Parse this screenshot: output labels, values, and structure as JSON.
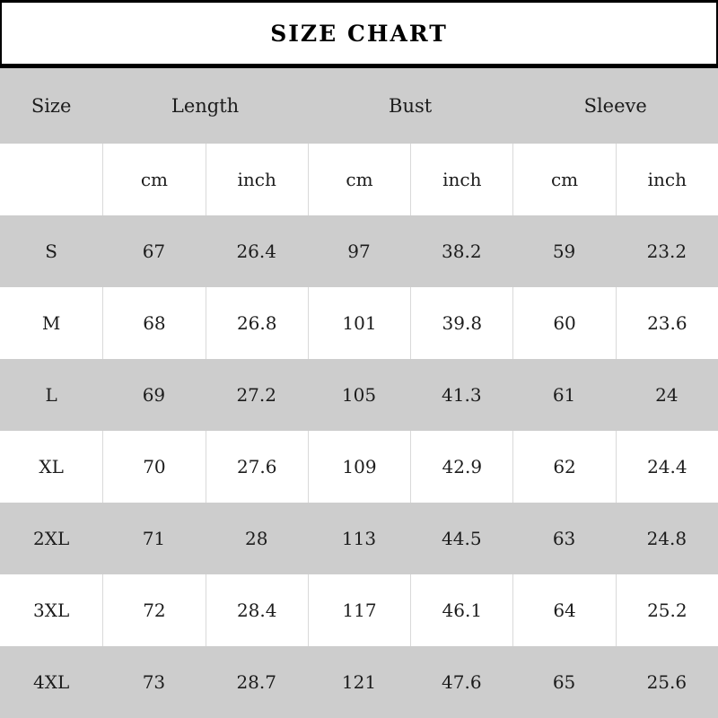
{
  "title": "SIZE CHART",
  "colors": {
    "row_shade": "#cdcdcd",
    "border": "#000000",
    "grid_line": "#d9d9d9",
    "background": "#ffffff",
    "text": "#1c1c1c"
  },
  "chart_data": {
    "type": "table",
    "title": "SIZE CHART",
    "group_headers": [
      {
        "label": "Size",
        "span": 1
      },
      {
        "label": "Length",
        "span": 2
      },
      {
        "label": "Bust",
        "span": 2
      },
      {
        "label": "Sleeve",
        "span": 2
      }
    ],
    "unit_headers": {
      "c0": "",
      "c1": "cm",
      "c2": "inch",
      "c3": "cm",
      "c4": "inch",
      "c5": "cm",
      "c6": "inch"
    },
    "rows": [
      {
        "size": "S",
        "length_cm": "67",
        "length_in": "26.4",
        "bust_cm": "97",
        "bust_in": "38.2",
        "sleeve_cm": "59",
        "sleeve_in": "23.2"
      },
      {
        "size": "M",
        "length_cm": "68",
        "length_in": "26.8",
        "bust_cm": "101",
        "bust_in": "39.8",
        "sleeve_cm": "60",
        "sleeve_in": "23.6"
      },
      {
        "size": "L",
        "length_cm": "69",
        "length_in": "27.2",
        "bust_cm": "105",
        "bust_in": "41.3",
        "sleeve_cm": "61",
        "sleeve_in": "24"
      },
      {
        "size": "XL",
        "length_cm": "70",
        "length_in": "27.6",
        "bust_cm": "109",
        "bust_in": "42.9",
        "sleeve_cm": "62",
        "sleeve_in": "24.4"
      },
      {
        "size": "2XL",
        "length_cm": "71",
        "length_in": "28",
        "bust_cm": "113",
        "bust_in": "44.5",
        "sleeve_cm": "63",
        "sleeve_in": "24.8"
      },
      {
        "size": "3XL",
        "length_cm": "72",
        "length_in": "28.4",
        "bust_cm": "117",
        "bust_in": "46.1",
        "sleeve_cm": "64",
        "sleeve_in": "25.2"
      },
      {
        "size": "4XL",
        "length_cm": "73",
        "length_in": "28.7",
        "bust_cm": "121",
        "bust_in": "47.6",
        "sleeve_cm": "65",
        "sleeve_in": "25.6"
      }
    ]
  }
}
